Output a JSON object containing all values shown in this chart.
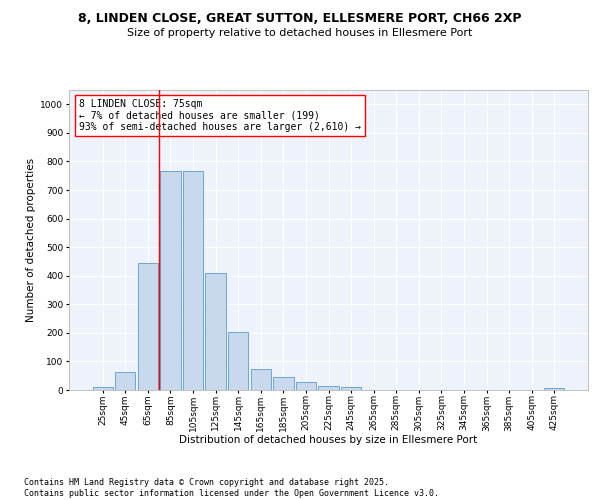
{
  "title1": "8, LINDEN CLOSE, GREAT SUTTON, ELLESMERE PORT, CH66 2XP",
  "title2": "Size of property relative to detached houses in Ellesmere Port",
  "xlabel": "Distribution of detached houses by size in Ellesmere Port",
  "ylabel": "Number of detached properties",
  "bar_categories": [
    "25sqm",
    "45sqm",
    "65sqm",
    "85sqm",
    "105sqm",
    "125sqm",
    "145sqm",
    "165sqm",
    "185sqm",
    "205sqm",
    "225sqm",
    "245sqm",
    "265sqm",
    "285sqm",
    "305sqm",
    "325sqm",
    "345sqm",
    "365sqm",
    "385sqm",
    "405sqm",
    "425sqm"
  ],
  "bar_values": [
    10,
    62,
    443,
    765,
    765,
    408,
    203,
    75,
    45,
    28,
    13,
    10,
    0,
    0,
    0,
    0,
    0,
    0,
    0,
    0,
    8
  ],
  "bar_color": "#c9d9ed",
  "bar_edge_color": "#5b9bd5",
  "vline_color": "red",
  "annotation_text": "8 LINDEN CLOSE: 75sqm\n← 7% of detached houses are smaller (199)\n93% of semi-detached houses are larger (2,610) →",
  "annotation_box_color": "white",
  "annotation_box_edge": "red",
  "ylim": [
    0,
    1050
  ],
  "yticks": [
    0,
    100,
    200,
    300,
    400,
    500,
    600,
    700,
    800,
    900,
    1000
  ],
  "background_color": "#eef3fb",
  "grid_color": "white",
  "footer": "Contains HM Land Registry data © Crown copyright and database right 2025.\nContains public sector information licensed under the Open Government Licence v3.0.",
  "title_fontsize": 9,
  "subtitle_fontsize": 8,
  "axis_label_fontsize": 7.5,
  "tick_fontsize": 6.5,
  "annotation_fontsize": 7,
  "footer_fontsize": 6
}
